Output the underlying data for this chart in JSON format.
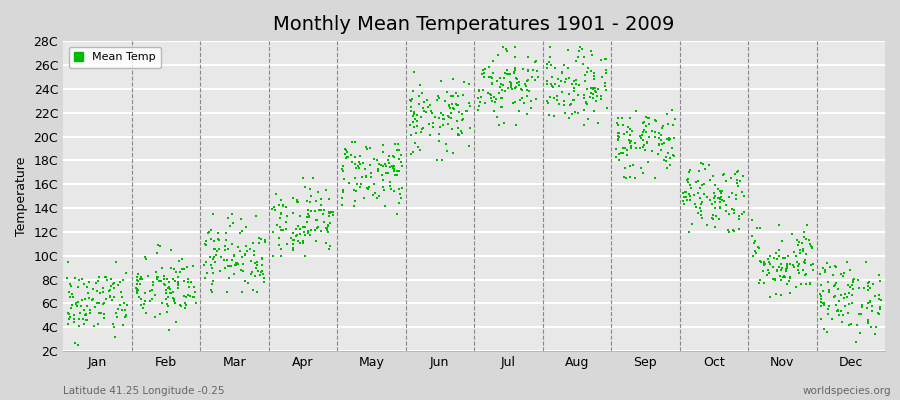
{
  "title": "Monthly Mean Temperatures 1901 - 2009",
  "ylabel": "Temperature",
  "xlabel_bottom_left": "Latitude 41.25 Longitude -0.25",
  "xlabel_bottom_right": "worldspecies.org",
  "ytick_labels": [
    "2C",
    "4C",
    "6C",
    "8C",
    "10C",
    "12C",
    "14C",
    "16C",
    "18C",
    "20C",
    "22C",
    "24C",
    "26C",
    "28C"
  ],
  "ytick_values": [
    2,
    4,
    6,
    8,
    10,
    12,
    14,
    16,
    18,
    20,
    22,
    24,
    26,
    28
  ],
  "ylim": [
    2,
    28
  ],
  "month_names": [
    "Jan",
    "Feb",
    "Mar",
    "Apr",
    "May",
    "Jun",
    "Jul",
    "Aug",
    "Sep",
    "Oct",
    "Nov",
    "Dec"
  ],
  "monthly_mean": [
    6.0,
    7.2,
    10.0,
    13.0,
    17.0,
    21.5,
    24.5,
    24.0,
    19.5,
    15.0,
    9.5,
    6.5
  ],
  "monthly_std": [
    1.5,
    1.5,
    1.5,
    1.5,
    1.5,
    1.5,
    1.5,
    1.5,
    1.5,
    1.5,
    1.5,
    1.5
  ],
  "monthly_min": [
    2.5,
    3.0,
    7.0,
    10.0,
    13.5,
    18.0,
    21.0,
    21.0,
    16.5,
    12.0,
    6.5,
    2.5
  ],
  "monthly_max": [
    9.5,
    11.5,
    13.5,
    16.5,
    19.5,
    25.5,
    27.5,
    27.5,
    22.5,
    18.5,
    13.5,
    9.5
  ],
  "n_years": 109,
  "dot_color": "#00bb00",
  "dot_size": 4,
  "background_color": "#d8d8d8",
  "plot_bg_color": "#e8e8e8",
  "grid_color": "#ffffff",
  "grid_linewidth": 1.5,
  "title_fontsize": 14,
  "axis_label_fontsize": 9,
  "tick_fontsize": 9,
  "legend_label": "Mean Temp",
  "seed": 42
}
